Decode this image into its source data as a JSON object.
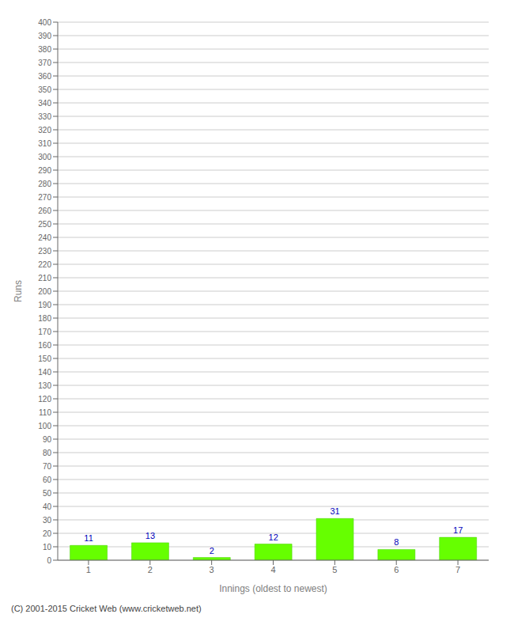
{
  "chart_data": {
    "type": "bar",
    "categories": [
      "1",
      "2",
      "3",
      "4",
      "5",
      "6",
      "7"
    ],
    "values": [
      11,
      13,
      2,
      12,
      31,
      8,
      17
    ],
    "color": "#66ff00",
    "xlabel": "Innings (oldest to newest)",
    "ylabel": "Runs",
    "ylim": [
      0,
      400
    ],
    "yticks": [
      0,
      10,
      20,
      30,
      40,
      50,
      60,
      70,
      80,
      90,
      100,
      110,
      120,
      130,
      140,
      150,
      160,
      170,
      180,
      190,
      200,
      210,
      220,
      230,
      240,
      250,
      260,
      270,
      280,
      290,
      300,
      310,
      320,
      330,
      340,
      350,
      360,
      370,
      380,
      390,
      400
    ],
    "grid": true,
    "data_labels": true,
    "annotations": [
      "(C) 2001-2015 Cricket Web (www.cricketweb.net)"
    ]
  }
}
